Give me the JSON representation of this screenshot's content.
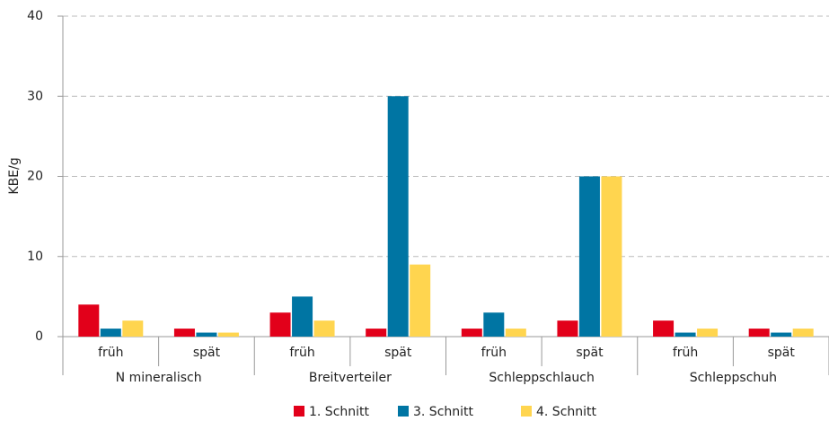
{
  "chart_data": {
    "type": "bar",
    "y_label": "KBE/g",
    "categories": [
      "früh",
      "spät",
      "früh",
      "spät",
      "früh",
      "spät",
      "früh",
      "spät"
    ],
    "group_labels": [
      "N mineralisch",
      "Breitverteiler",
      "Schleppschlauch",
      "Schleppschuh"
    ],
    "series": [
      {
        "name": "1. Schnitt",
        "color": "#e2001a",
        "values": [
          4,
          1,
          3,
          1,
          1,
          2,
          2,
          1
        ]
      },
      {
        "name": "3. Schnitt",
        "color": "#0075a3",
        "values": [
          1,
          0.5,
          5,
          30,
          3,
          20,
          0.5,
          0.5
        ]
      },
      {
        "name": "4. Schnitt",
        "color": "#ffd54f",
        "values": [
          2,
          0.5,
          2,
          9,
          1,
          20,
          1,
          1
        ]
      }
    ],
    "ylim": [
      0,
      40
    ],
    "yticks": [
      0,
      10,
      20,
      30,
      40
    ],
    "grid": true
  }
}
